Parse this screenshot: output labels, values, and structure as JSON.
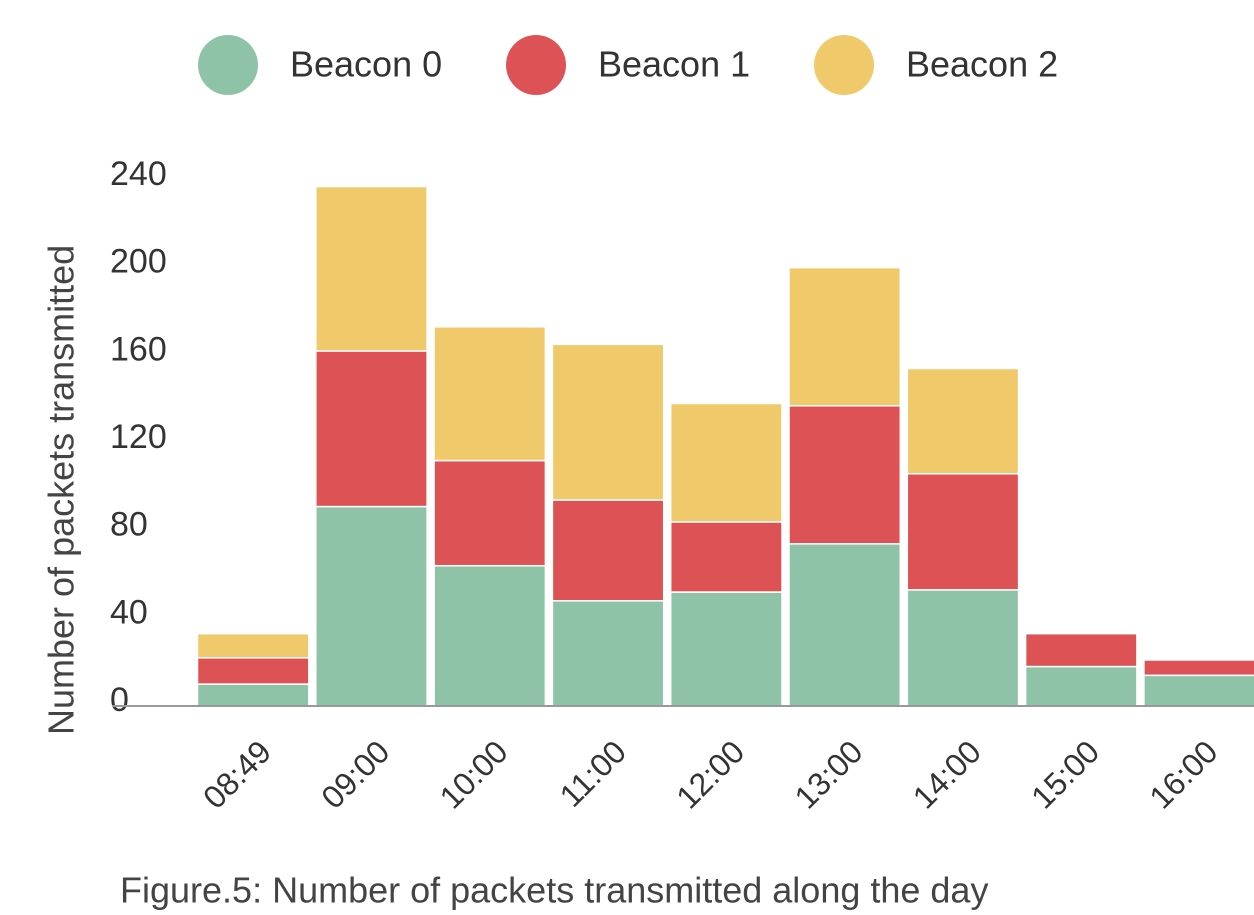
{
  "chart_data": {
    "type": "stacked-bar",
    "y_label": "Number of packets transmitted",
    "caption": "Figure.5: Number of packets transmitted along the day",
    "categories": [
      "08:49",
      "09:00",
      "10:00",
      "11:00",
      "12:00",
      "13:00",
      "14:00",
      "15:00",
      "16:00"
    ],
    "series": [
      {
        "name": "Beacon 0",
        "color": "#8fc3a7",
        "values": [
          10,
          91,
          64,
          48,
          52,
          74,
          53,
          18,
          14
        ]
      },
      {
        "name": "Beacon 1",
        "color": "#dd5355",
        "values": [
          12,
          71,
          48,
          46,
          32,
          63,
          53,
          15,
          7
        ]
      },
      {
        "name": "Beacon 2",
        "color": "#f0c96a",
        "values": [
          11,
          75,
          61,
          71,
          54,
          63,
          48,
          0,
          0
        ]
      }
    ],
    "ylim": [
      0,
      240
    ],
    "yticks": [
      0,
      40,
      80,
      120,
      160,
      200,
      240
    ],
    "grid": false
  }
}
